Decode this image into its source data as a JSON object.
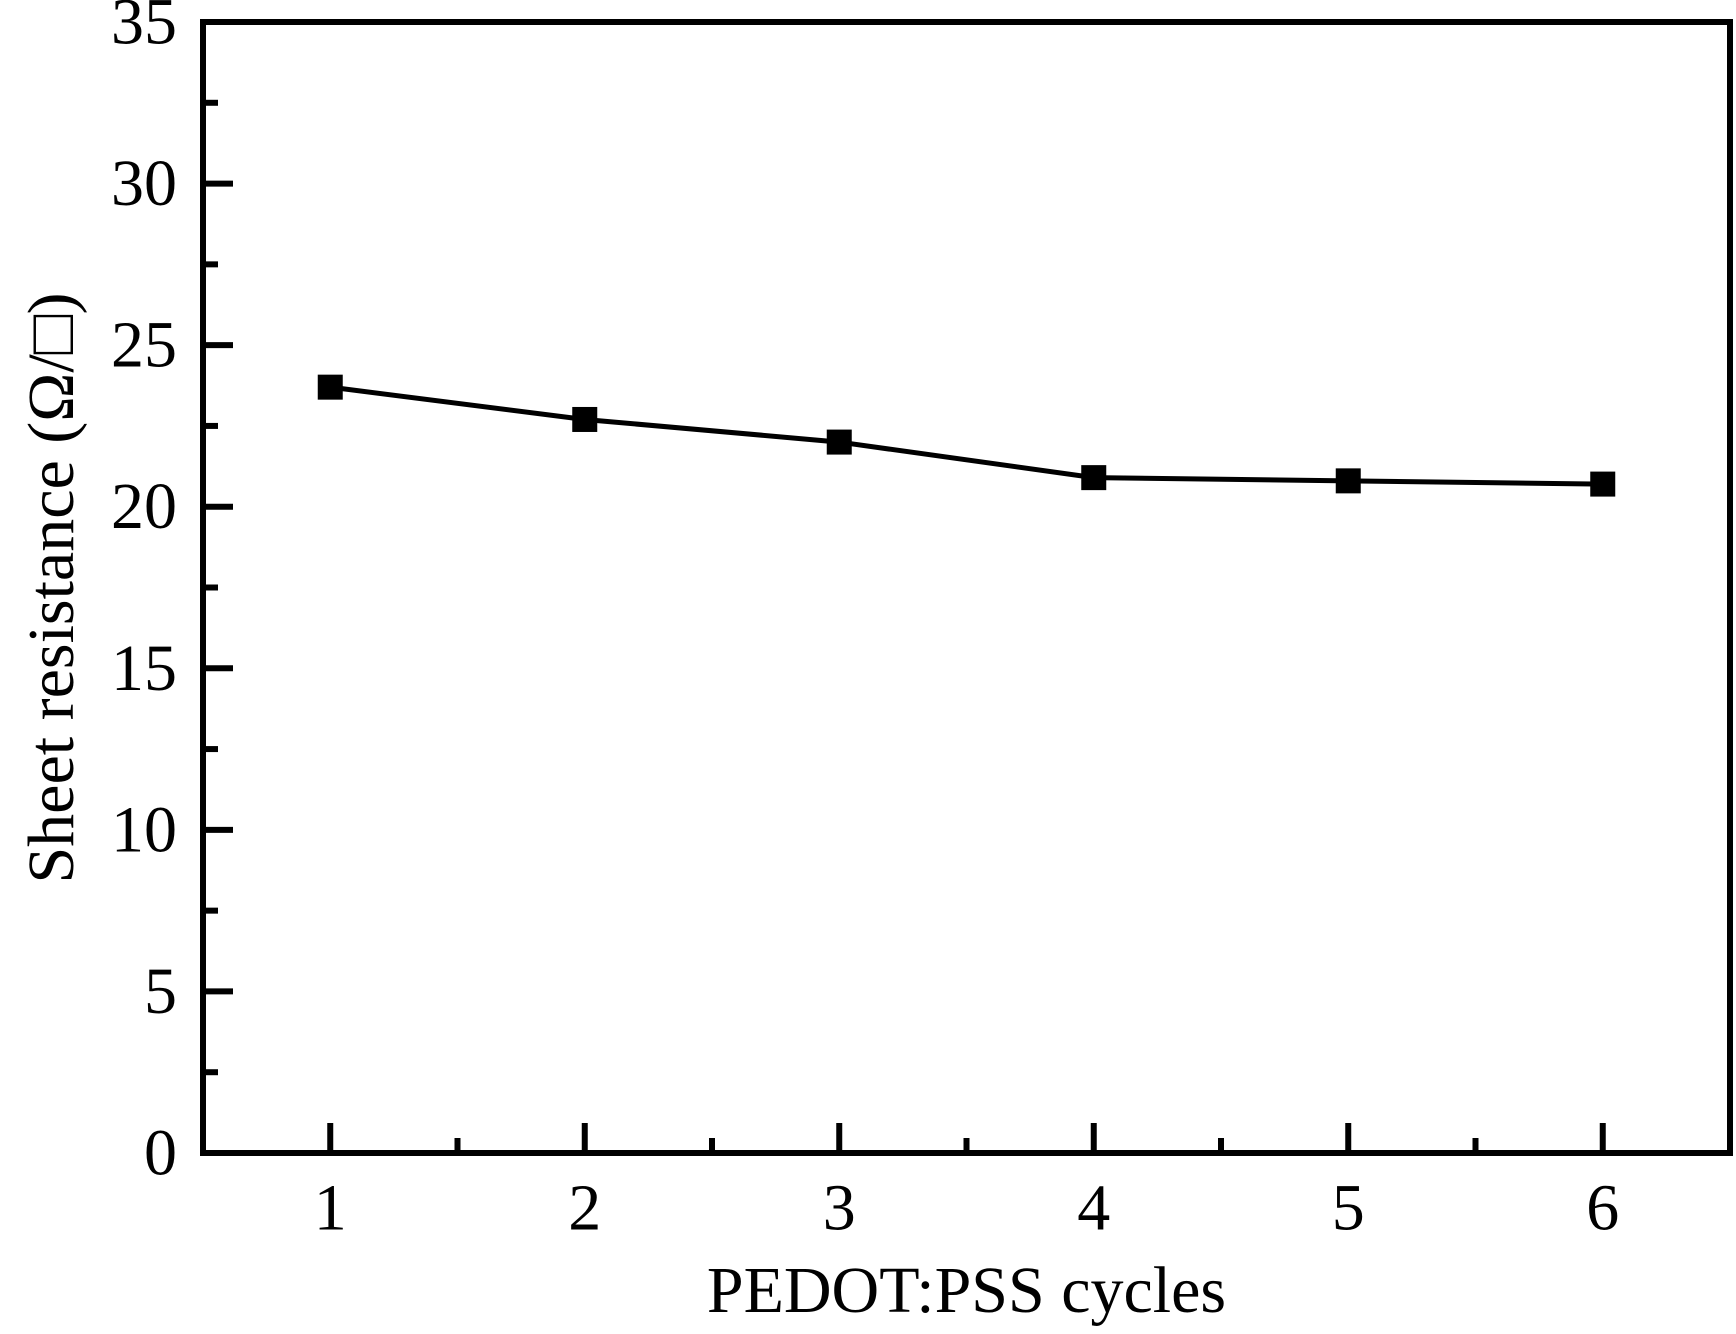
{
  "chart_data": {
    "type": "line",
    "title": "",
    "xlabel": "PEDOT:PSS cycles",
    "ylabel": "Sheet resistance (Ω/□)",
    "x": [
      1,
      2,
      3,
      4,
      5,
      6
    ],
    "series": [
      {
        "name": "Sheet resistance",
        "values": [
          23.7,
          22.7,
          22.0,
          20.9,
          20.8,
          20.7
        ]
      }
    ],
    "xlim": [
      0.5,
      6.5
    ],
    "ylim": [
      0,
      35
    ],
    "x_major_ticks": [
      1,
      2,
      3,
      4,
      5,
      6
    ],
    "x_tick_labels": [
      "1",
      "2",
      "3",
      "4",
      "5",
      "6"
    ],
    "x_minor_ticks": [
      1.5,
      2.5,
      3.5,
      4.5,
      5.5
    ],
    "y_major_ticks": [
      0,
      5,
      10,
      15,
      20,
      25,
      30,
      35
    ],
    "y_tick_labels": [
      "0",
      "5",
      "10",
      "15",
      "20",
      "25",
      "30",
      "35"
    ],
    "y_minor_ticks": [
      2.5,
      7.5,
      12.5,
      17.5,
      22.5,
      27.5,
      32.5
    ],
    "marker": "filled-square",
    "grid": false,
    "legend_position": "none",
    "colors": {
      "line": "#000000",
      "marker": "#000000",
      "axis": "#000000",
      "text": "#000000",
      "background": "#ffffff"
    }
  }
}
